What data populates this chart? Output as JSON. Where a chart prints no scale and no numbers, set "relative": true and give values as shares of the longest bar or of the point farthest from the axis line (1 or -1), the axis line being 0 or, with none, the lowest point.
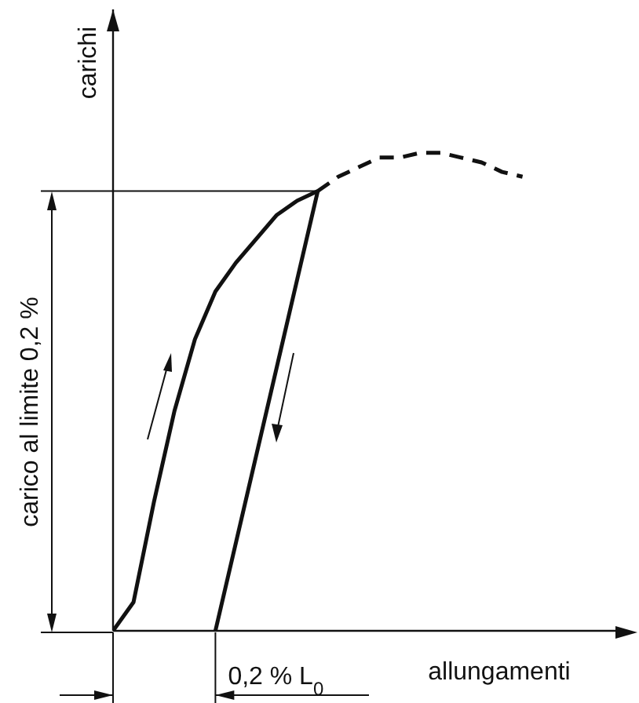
{
  "chart_data": {
    "type": "line",
    "relative": true,
    "xlabel": "allungamenti",
    "ylabel": "carichi",
    "categories": [
      null,
      null,
      null,
      null,
      null,
      null,
      null,
      null,
      null,
      null,
      null,
      null,
      null,
      null,
      null,
      null,
      null,
      null,
      null,
      null,
      null,
      null,
      null,
      null,
      null,
      null
    ],
    "series": [
      {
        "color": "#111111",
        "values": [
          0,
          0.06,
          0.27,
          0.46,
          0.61,
          0.71,
          0.77,
          0.82,
          0.87,
          0.9,
          0.92,
          null,
          null,
          null,
          null,
          null,
          null,
          null,
          null,
          null,
          null,
          null,
          null,
          null,
          null,
          null
        ]
      },
      {
        "color": "#111111",
        "values": [
          null,
          null,
          null,
          null,
          null,
          0,
          null,
          null,
          null,
          null,
          0.92,
          null,
          null,
          null,
          null,
          null,
          null,
          null,
          null,
          null,
          null,
          null,
          null,
          null,
          null,
          null
        ]
      },
      {
        "color": "#111111",
        "line_style": "dashed",
        "values": [
          null,
          null,
          null,
          null,
          null,
          null,
          null,
          null,
          null,
          null,
          0.92,
          0.95,
          0.97,
          0.99,
          0.99,
          1,
          1,
          0.99,
          0.98,
          0.96,
          0.95,
          null,
          null,
          null,
          null,
          null
        ]
      }
    ],
    "ref_lines": [
      {
        "axis": "y",
        "value": 0.92,
        "color": "#111111"
      }
    ],
    "annotations": [
      "carico al limite 0,2 %",
      "0,2 % L$_{0}$"
    ]
  }
}
